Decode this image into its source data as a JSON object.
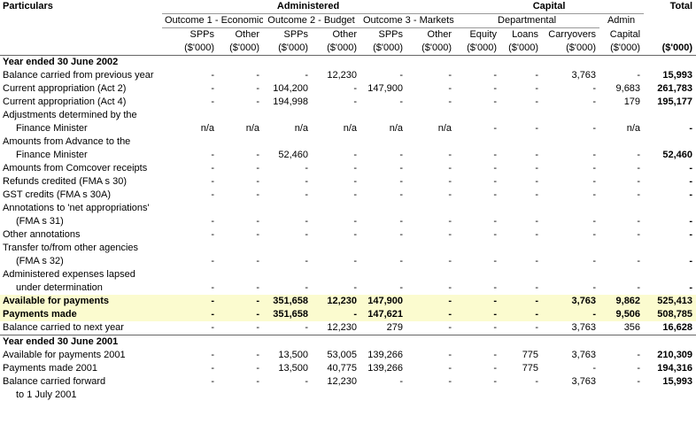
{
  "header": {
    "particulars": "Particulars",
    "groups": [
      "Administered",
      "Capital"
    ],
    "total": "Total",
    "subgroups": [
      "Outcome 1 - Economic",
      "Outcome 2 - Budget",
      "Outcome 3 - Markets",
      "Departmental",
      "Admin"
    ],
    "columns": [
      "SPPs",
      "Other",
      "SPPs",
      "Other",
      "SPPs",
      "Other",
      "Equity",
      "Loans",
      "Carryovers",
      "Capital"
    ],
    "units": [
      "($'000)",
      "($'000)",
      "($'000)",
      "($'000)",
      "($'000)",
      "($'000)",
      "($'000)",
      "($'000)",
      "($'000)",
      "($'000)",
      "($'000)"
    ]
  },
  "rows": [
    {
      "label": "Year ended 30 June 2002",
      "style": "section"
    },
    {
      "label": "Balance carried from previous year",
      "cells": [
        "-",
        "-",
        "-",
        "12,230",
        "-",
        "-",
        "-",
        "-",
        "3,763",
        "-",
        "15,993"
      ]
    },
    {
      "label": "Current appropriation (Act 2)",
      "cells": [
        "-",
        "-",
        "104,200",
        "-",
        "147,900",
        "-",
        "-",
        "-",
        "-",
        "9,683",
        "261,783"
      ]
    },
    {
      "label": "Current appropriation (Act 4)",
      "cells": [
        "-",
        "-",
        "194,998",
        "-",
        "-",
        "-",
        "-",
        "-",
        "-",
        "179",
        "195,177"
      ]
    },
    {
      "label": "Adjustments determined by the"
    },
    {
      "label": "Finance Minister",
      "indent": true,
      "cells": [
        "n/a",
        "n/a",
        "n/a",
        "n/a",
        "n/a",
        "n/a",
        "-",
        "-",
        "-",
        "n/a",
        "-"
      ]
    },
    {
      "label": "Amounts from Advance to the"
    },
    {
      "label": "Finance Minister",
      "indent": true,
      "cells": [
        "-",
        "-",
        "52,460",
        "-",
        "-",
        "-",
        "-",
        "-",
        "-",
        "-",
        "52,460"
      ]
    },
    {
      "label": "Amounts from Comcover receipts",
      "cells": [
        "-",
        "-",
        "-",
        "-",
        "-",
        "-",
        "-",
        "-",
        "-",
        "-",
        "-"
      ]
    },
    {
      "label": "Refunds credited (FMA s 30)",
      "cells": [
        "-",
        "-",
        "-",
        "-",
        "-",
        "-",
        "-",
        "-",
        "-",
        "-",
        "-"
      ]
    },
    {
      "label": "GST credits (FMA s 30A)",
      "cells": [
        "-",
        "-",
        "-",
        "-",
        "-",
        "-",
        "-",
        "-",
        "-",
        "-",
        "-"
      ]
    },
    {
      "label": "Annotations to 'net appropriations'"
    },
    {
      "label": "(FMA s 31)",
      "indent": true,
      "cells": [
        "-",
        "-",
        "-",
        "-",
        "-",
        "-",
        "-",
        "-",
        "-",
        "-",
        "-"
      ]
    },
    {
      "label": "Other annotations",
      "cells": [
        "-",
        "-",
        "-",
        "-",
        "-",
        "-",
        "-",
        "-",
        "-",
        "-",
        "-"
      ]
    },
    {
      "label": "Transfer to/from other agencies"
    },
    {
      "label": "(FMA s 32)",
      "indent": true,
      "cells": [
        "-",
        "-",
        "-",
        "-",
        "-",
        "-",
        "-",
        "-",
        "-",
        "-",
        "-"
      ]
    },
    {
      "label": "Administered expenses lapsed"
    },
    {
      "label": "under determination",
      "indent": true,
      "cells": [
        "-",
        "-",
        "-",
        "-",
        "-",
        "-",
        "-",
        "-",
        "-",
        "-",
        "-"
      ]
    },
    {
      "label": "Available for payments",
      "style": "highlight",
      "cells": [
        "-",
        "-",
        "351,658",
        "12,230",
        "147,900",
        "-",
        "-",
        "-",
        "3,763",
        "9,862",
        "525,413"
      ]
    },
    {
      "label": "Payments made",
      "style": "highlight",
      "cells": [
        "-",
        "-",
        "351,658",
        "-",
        "147,621",
        "-",
        "-",
        "-",
        "-",
        "9,506",
        "508,785"
      ]
    },
    {
      "label": "Balance carried to next year",
      "cells": [
        "-",
        "-",
        "-",
        "12,230",
        "279",
        "-",
        "-",
        "-",
        "3,763",
        "356",
        "16,628"
      ]
    },
    {
      "label": "Year ended 30 June 2001",
      "style": "section",
      "separator": true
    },
    {
      "label": "Available for payments 2001",
      "cells": [
        "-",
        "-",
        "13,500",
        "53,005",
        "139,266",
        "-",
        "-",
        "775",
        "3,763",
        "-",
        "210,309"
      ]
    },
    {
      "label": "Payments made 2001",
      "cells": [
        "-",
        "-",
        "13,500",
        "40,775",
        "139,266",
        "-",
        "-",
        "775",
        "-",
        "-",
        "194,316"
      ]
    },
    {
      "label": "Balance carried forward",
      "cells": [
        "-",
        "-",
        "-",
        "12,230",
        "-",
        "-",
        "-",
        "-",
        "3,763",
        "-",
        "15,993"
      ]
    },
    {
      "label": "to 1 July 2001",
      "indent": true
    }
  ]
}
